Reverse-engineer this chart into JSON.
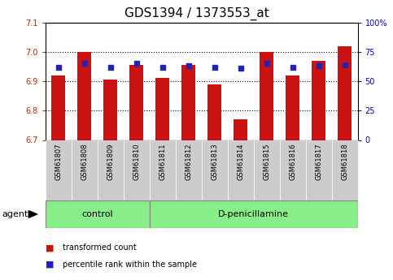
{
  "title": "GDS1394 / 1373553_at",
  "samples": [
    "GSM61807",
    "GSM61808",
    "GSM61809",
    "GSM61810",
    "GSM61811",
    "GSM61812",
    "GSM61813",
    "GSM61814",
    "GSM61815",
    "GSM61816",
    "GSM61817",
    "GSM61818"
  ],
  "transformed_count": [
    6.92,
    7.0,
    6.905,
    6.955,
    6.91,
    6.955,
    6.888,
    6.77,
    7.0,
    6.92,
    6.97,
    7.02
  ],
  "percentile_rank": [
    62,
    65,
    62,
    65,
    62,
    63,
    62,
    61,
    65,
    62,
    63,
    64
  ],
  "ylim_left": [
    6.7,
    7.1
  ],
  "ylim_right": [
    0,
    100
  ],
  "yticks_left": [
    6.7,
    6.8,
    6.9,
    7.0,
    7.1
  ],
  "yticks_right": [
    0,
    25,
    50,
    75,
    100
  ],
  "ytick_labels_right": [
    "0",
    "25",
    "50",
    "75",
    "100%"
  ],
  "bar_color": "#cc1111",
  "dot_color": "#2222bb",
  "bar_bottom": 6.7,
  "num_control": 4,
  "control_label": "control",
  "treatment_label": "D-penicillamine",
  "agent_label": "agent",
  "legend_bar_label": "transformed count",
  "legend_dot_label": "percentile rank within the sample",
  "group_box_color": "#88ee88",
  "tick_bg_color": "#cccccc",
  "background_color": "#ffffff",
  "title_fontsize": 11,
  "tick_fontsize": 7,
  "axis_label_color_left": "#cc2200",
  "axis_label_color_right": "#0000cc"
}
